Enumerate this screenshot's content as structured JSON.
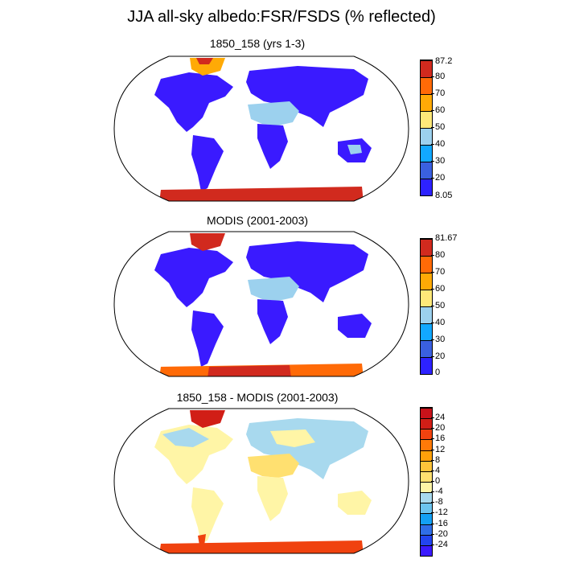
{
  "figure": {
    "title": "JJA all-sky albedo:FSR/FSDS (% reflected)"
  },
  "panels": [
    {
      "title": "1850_158 (yrs 1-3)",
      "colorbar": {
        "max_label": "87.2",
        "min_label": "8.05",
        "levels": [
          "80",
          "70",
          "60",
          "50",
          "40",
          "30",
          "20"
        ],
        "colors": [
          "#2d22ff",
          "#3a60e0",
          "#12a8ff",
          "#9cd1ee",
          "#ffe979",
          "#ffaa06",
          "#ff6a07",
          "#d12a1e"
        ]
      },
      "legend_colors": {
        "ocean": "#ffffff",
        "land": "#3a1aff"
      }
    },
    {
      "title": "MODIS (2001-2003)",
      "colorbar": {
        "max_label": "81.67",
        "min_label": "0",
        "levels": [
          "80",
          "70",
          "60",
          "50",
          "40",
          "30",
          "20"
        ],
        "colors": [
          "#2d22ff",
          "#3a60e0",
          "#12a8ff",
          "#9cd1ee",
          "#ffe979",
          "#ffaa06",
          "#ff6a07",
          "#d12a1e"
        ]
      }
    },
    {
      "title": "1850_158 - MODIS (2001-2003)",
      "colorbar": {
        "levels": [
          "24",
          "20",
          "16",
          "12",
          "8",
          "4",
          "0",
          "-4",
          "-8",
          "-12",
          "-16",
          "-20",
          "-24"
        ],
        "colors": [
          "#3a1aff",
          "#2244f0",
          "#2f6ee8",
          "#13a0f5",
          "#6cc4ef",
          "#a8d9ee",
          "#fff5a6",
          "#ffe070",
          "#ffc43a",
          "#ffa10a",
          "#ff7a08",
          "#f0420f",
          "#d11e16",
          "#c8121a"
        ]
      }
    }
  ]
}
